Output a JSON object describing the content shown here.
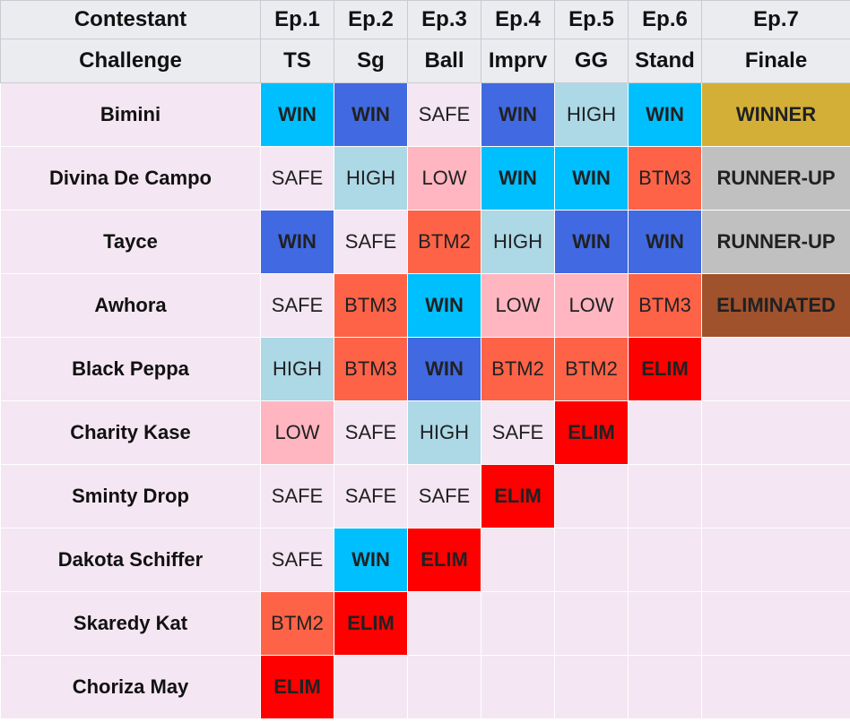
{
  "header": {
    "contestant": "Contestant",
    "challenge": "Challenge",
    "episodes": [
      "Ep.1",
      "Ep.2",
      "Ep.3",
      "Ep.4",
      "Ep.5",
      "Ep.6",
      "Ep.7"
    ],
    "challenges": [
      "TS",
      "Sg",
      "Ball",
      "Imprv",
      "GG",
      "Stand",
      "Finale"
    ]
  },
  "colors": {
    "WIN": "#00bfff",
    "WIN_alt": "#4169e1",
    "HIGH": "#add8e6",
    "SAFE": "#f4e6f2",
    "LOW": "#ffb6c1",
    "BTM": "#ff6347",
    "ELIM": "#ff0000",
    "WINNER": "#d4af37",
    "RUNNER-UP": "#c0c0c0",
    "ELIMINATED": "#a0522d"
  },
  "rows": [
    {
      "name": "Bimini",
      "cells": [
        {
          "t": "WIN",
          "s": "WIN"
        },
        {
          "t": "WIN",
          "s": "WIN2"
        },
        {
          "t": "SAFE",
          "s": "SAFE"
        },
        {
          "t": "WIN",
          "s": "WIN2"
        },
        {
          "t": "HIGH",
          "s": "HIGH"
        },
        {
          "t": "WIN",
          "s": "WIN"
        },
        {
          "t": "WINNER",
          "s": "WINNER"
        }
      ]
    },
    {
      "name": "Divina De Campo",
      "cells": [
        {
          "t": "SAFE",
          "s": "SAFE"
        },
        {
          "t": "HIGH",
          "s": "HIGH"
        },
        {
          "t": "LOW",
          "s": "LOW"
        },
        {
          "t": "WIN",
          "s": "WIN"
        },
        {
          "t": "WIN",
          "s": "WIN"
        },
        {
          "t": "BTM3",
          "s": "BTM"
        },
        {
          "t": "RUNNER-UP",
          "s": "RUNNER"
        }
      ]
    },
    {
      "name": "Tayce",
      "cells": [
        {
          "t": "WIN",
          "s": "WIN2"
        },
        {
          "t": "SAFE",
          "s": "SAFE"
        },
        {
          "t": "BTM2",
          "s": "BTM"
        },
        {
          "t": "HIGH",
          "s": "HIGH"
        },
        {
          "t": "WIN",
          "s": "WIN2"
        },
        {
          "t": "WIN",
          "s": "WIN2"
        },
        {
          "t": "RUNNER-UP",
          "s": "RUNNER"
        }
      ]
    },
    {
      "name": "Awhora",
      "cells": [
        {
          "t": "SAFE",
          "s": "SAFE"
        },
        {
          "t": "BTM3",
          "s": "BTM"
        },
        {
          "t": "WIN",
          "s": "WIN"
        },
        {
          "t": "LOW",
          "s": "LOW"
        },
        {
          "t": "LOW",
          "s": "LOW"
        },
        {
          "t": "BTM3",
          "s": "BTM"
        },
        {
          "t": "ELIMINATED",
          "s": "ELIMF"
        }
      ]
    },
    {
      "name": "Black Peppa",
      "cells": [
        {
          "t": "HIGH",
          "s": "HIGH"
        },
        {
          "t": "BTM3",
          "s": "BTM"
        },
        {
          "t": "WIN",
          "s": "WIN2"
        },
        {
          "t": "BTM2",
          "s": "BTM"
        },
        {
          "t": "BTM2",
          "s": "BTM"
        },
        {
          "t": "ELIM",
          "s": "ELIM"
        },
        {
          "t": "",
          "s": ""
        }
      ]
    },
    {
      "name": "Charity Kase",
      "cells": [
        {
          "t": "LOW",
          "s": "LOW"
        },
        {
          "t": "SAFE",
          "s": "SAFE"
        },
        {
          "t": "HIGH",
          "s": "HIGH"
        },
        {
          "t": "SAFE",
          "s": "SAFE"
        },
        {
          "t": "ELIM",
          "s": "ELIM"
        },
        {
          "t": "",
          "s": ""
        },
        {
          "t": "",
          "s": ""
        }
      ]
    },
    {
      "name": "Sminty Drop",
      "cells": [
        {
          "t": "SAFE",
          "s": "SAFE"
        },
        {
          "t": "SAFE",
          "s": "SAFE"
        },
        {
          "t": "SAFE",
          "s": "SAFE"
        },
        {
          "t": "ELIM",
          "s": "ELIM"
        },
        {
          "t": "",
          "s": ""
        },
        {
          "t": "",
          "s": ""
        },
        {
          "t": "",
          "s": ""
        }
      ]
    },
    {
      "name": "Dakota Schiffer",
      "cells": [
        {
          "t": "SAFE",
          "s": "SAFE"
        },
        {
          "t": "WIN",
          "s": "WIN"
        },
        {
          "t": "ELIM",
          "s": "ELIM"
        },
        {
          "t": "",
          "s": ""
        },
        {
          "t": "",
          "s": ""
        },
        {
          "t": "",
          "s": ""
        },
        {
          "t": "",
          "s": ""
        }
      ]
    },
    {
      "name": "Skaredy Kat",
      "cells": [
        {
          "t": "BTM2",
          "s": "BTM"
        },
        {
          "t": "ELIM",
          "s": "ELIM"
        },
        {
          "t": "",
          "s": ""
        },
        {
          "t": "",
          "s": ""
        },
        {
          "t": "",
          "s": ""
        },
        {
          "t": "",
          "s": ""
        },
        {
          "t": "",
          "s": ""
        }
      ]
    },
    {
      "name": "Choriza May",
      "cells": [
        {
          "t": "ELIM",
          "s": "ELIM"
        },
        {
          "t": "",
          "s": ""
        },
        {
          "t": "",
          "s": ""
        },
        {
          "t": "",
          "s": ""
        },
        {
          "t": "",
          "s": ""
        },
        {
          "t": "",
          "s": ""
        },
        {
          "t": "",
          "s": ""
        }
      ]
    }
  ]
}
